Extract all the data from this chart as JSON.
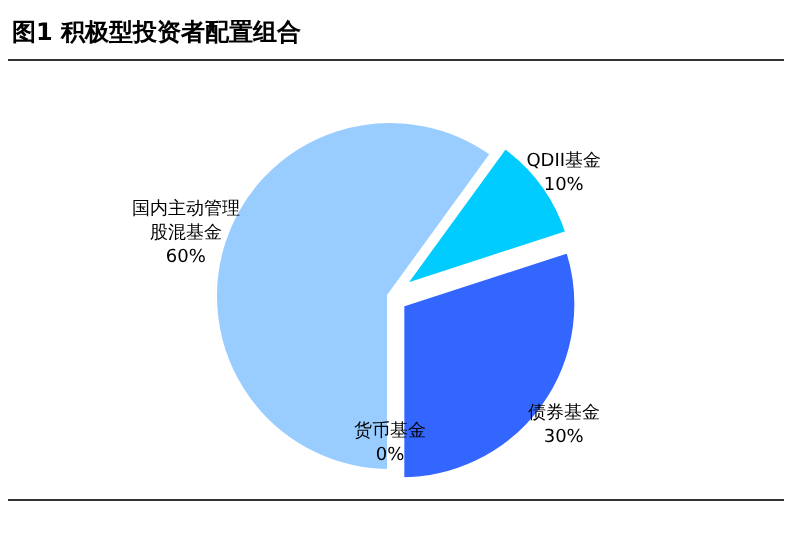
{
  "chart_data": {
    "type": "pie",
    "title": "图1  积极型投资者配置组合",
    "categories": [
      "国内主动管理股混基金",
      "QDII基金",
      "债券基金",
      "货币基金"
    ],
    "values": [
      60,
      10,
      30,
      0
    ],
    "colors": [
      "#99ccff",
      "#00ccff",
      "#3366ff",
      "#808080"
    ],
    "value_labels": [
      "60%",
      "10%",
      "30%",
      "0%"
    ]
  }
}
